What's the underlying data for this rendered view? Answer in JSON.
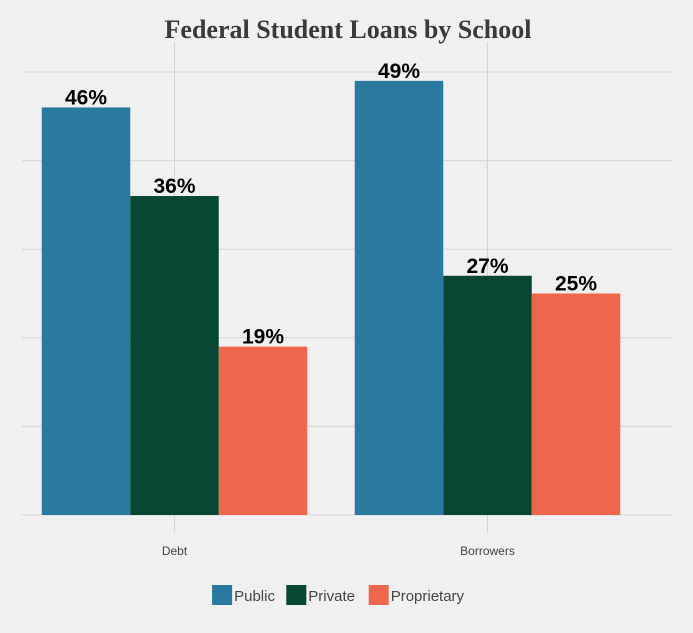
{
  "chart_data": {
    "type": "bar",
    "title": "Federal Student Loans by School",
    "xlabel": "",
    "ylabel": "",
    "categories": [
      "Debt",
      "Borrowers"
    ],
    "series": [
      {
        "name": "Public",
        "color": "#2a799f",
        "values": [
          46,
          49
        ],
        "labels": [
          "46%",
          "49%"
        ]
      },
      {
        "name": "Private",
        "color": "#064633",
        "values": [
          36,
          27
        ],
        "labels": [
          "36%",
          "27%"
        ]
      },
      {
        "name": "Proprietary",
        "color": "#ee664c",
        "values": [
          19,
          25
        ],
        "labels": [
          "19%",
          "25%"
        ]
      }
    ],
    "ylim": [
      0,
      50
    ],
    "grid": true,
    "legend_position": "bottom"
  }
}
